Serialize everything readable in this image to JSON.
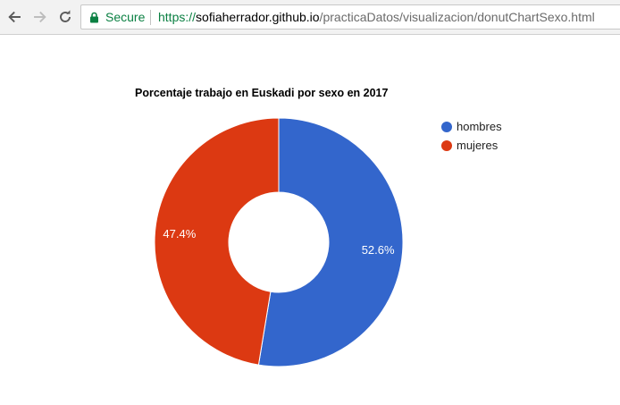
{
  "browser": {
    "secure_label": "Secure",
    "url_scheme": "https://",
    "url_host": "sofiaherrador.github.io",
    "url_path": "/practicaDatos/visualizacion/donutChartSexo.html",
    "icons": [
      "back-arrow-icon",
      "forward-arrow-icon",
      "reload-icon",
      "lock-icon"
    ]
  },
  "chart_data": {
    "type": "pie",
    "donut": true,
    "title": "Porcentaje trabajo en Euskadi por sexo en 2017",
    "categories": [
      "hombres",
      "mujeres"
    ],
    "values": [
      52.6,
      47.4
    ],
    "value_labels": [
      "52.6%",
      "47.4%"
    ],
    "colors": [
      "#3366cc",
      "#dc3912"
    ],
    "legend_position": "right"
  }
}
